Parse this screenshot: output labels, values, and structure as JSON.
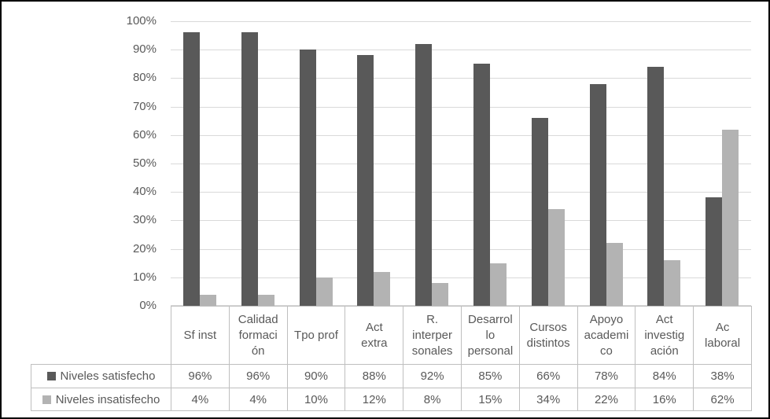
{
  "chart_data": {
    "type": "bar",
    "title": "",
    "xlabel": "",
    "ylabel": "",
    "grid": true,
    "legend_position": "bottom-left-table",
    "y_axis": {
      "min": 0,
      "max": 100,
      "step": 10,
      "tick_labels": [
        "0%",
        "10%",
        "20%",
        "30%",
        "40%",
        "50%",
        "60%",
        "70%",
        "80%",
        "90%",
        "100%"
      ]
    },
    "categories": [
      {
        "label": "Sf inst",
        "lines": [
          "Sf inst"
        ]
      },
      {
        "label": "Calidad formación",
        "lines": [
          "Calidad",
          "formaci",
          "ón"
        ]
      },
      {
        "label": "Tpo prof",
        "lines": [
          "Tpo prof"
        ]
      },
      {
        "label": "Act extra",
        "lines": [
          "Act",
          "extra"
        ]
      },
      {
        "label": "R. interpersonales",
        "lines": [
          "R.",
          "interper",
          "sonales"
        ]
      },
      {
        "label": "Desarrollo personal",
        "lines": [
          "Desarrol",
          "lo",
          "personal"
        ]
      },
      {
        "label": "Cursos distintos",
        "lines": [
          "Cursos",
          "distintos"
        ]
      },
      {
        "label": "Apoyo academico",
        "lines": [
          "Apoyo",
          "academi",
          "co"
        ]
      },
      {
        "label": "Act investigación",
        "lines": [
          "Act",
          "investig",
          "ación"
        ]
      },
      {
        "label": "Ac laboral",
        "lines": [
          "Ac",
          "laboral"
        ]
      }
    ],
    "series": [
      {
        "name": "Niveles satisfecho",
        "color": "#595959",
        "values": [
          96,
          96,
          90,
          88,
          92,
          85,
          66,
          78,
          84,
          38
        ],
        "value_labels": [
          "96%",
          "96%",
          "90%",
          "88%",
          "92%",
          "85%",
          "66%",
          "78%",
          "84%",
          "38%"
        ]
      },
      {
        "name": "Niveles insatisfecho",
        "color": "#b3b3b3",
        "values": [
          4,
          4,
          10,
          12,
          8,
          15,
          34,
          22,
          16,
          62
        ],
        "value_labels": [
          "4%",
          "4%",
          "10%",
          "12%",
          "8%",
          "15%",
          "34%",
          "22%",
          "16%",
          "62%"
        ]
      }
    ]
  },
  "colors": {
    "series_satisfecho": "#595959",
    "series_insatisfecho": "#b3b3b3",
    "gridline": "#d9d9d9",
    "table_border": "#bfbfbf",
    "text": "#595959",
    "background": "#ffffff",
    "frame_border": "#000000"
  }
}
